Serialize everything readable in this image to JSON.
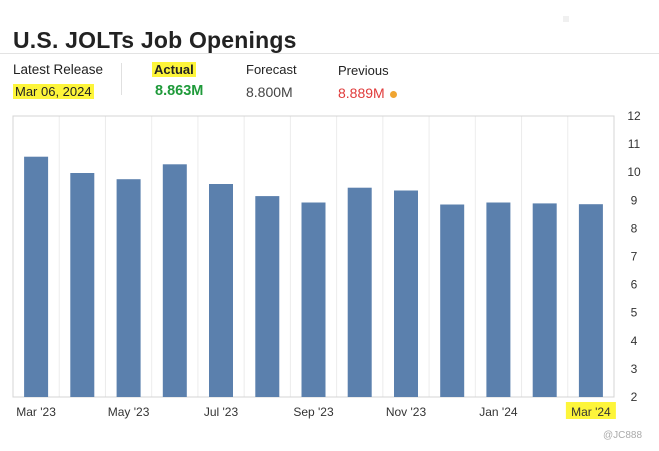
{
  "title": "U.S. JOLTs Job Openings",
  "latest_release": {
    "label": "Latest Release",
    "value": "Mar 06, 2024"
  },
  "actual": {
    "label": "Actual",
    "value": "8.863M"
  },
  "forecast": {
    "label": "Forecast",
    "value": "8.800M"
  },
  "previous": {
    "label": "Previous",
    "value": "8.889M"
  },
  "colors": {
    "bar": "#5b80ad",
    "actual": "#1f9a3a",
    "previous": "#e03a3a",
    "highlight": "#fdf53a",
    "dot": "#f0a531"
  },
  "watermark": "@JC888",
  "chart_data": {
    "type": "bar",
    "categories": [
      "Mar '23",
      "Apr '23",
      "May '23",
      "Jun '23",
      "Jul '23",
      "Aug '23",
      "Sep '23",
      "Oct '23",
      "Nov '23",
      "Dec '23",
      "Jan '24",
      "Feb '24",
      "Mar '24"
    ],
    "x_tick_labels": [
      "Mar '23",
      "May '23",
      "Jul '23",
      "Sep '23",
      "Nov '23",
      "Jan '24",
      "Mar '24"
    ],
    "values": [
      10.55,
      9.97,
      9.75,
      10.28,
      9.58,
      9.15,
      8.92,
      9.45,
      9.35,
      8.85,
      8.92,
      8.89,
      8.86
    ],
    "ylim": [
      2,
      12
    ],
    "yticks": [
      2,
      3,
      4,
      5,
      6,
      7,
      8,
      9,
      10,
      11,
      12
    ],
    "grid": true,
    "highlighted_tick": "Mar '24"
  }
}
